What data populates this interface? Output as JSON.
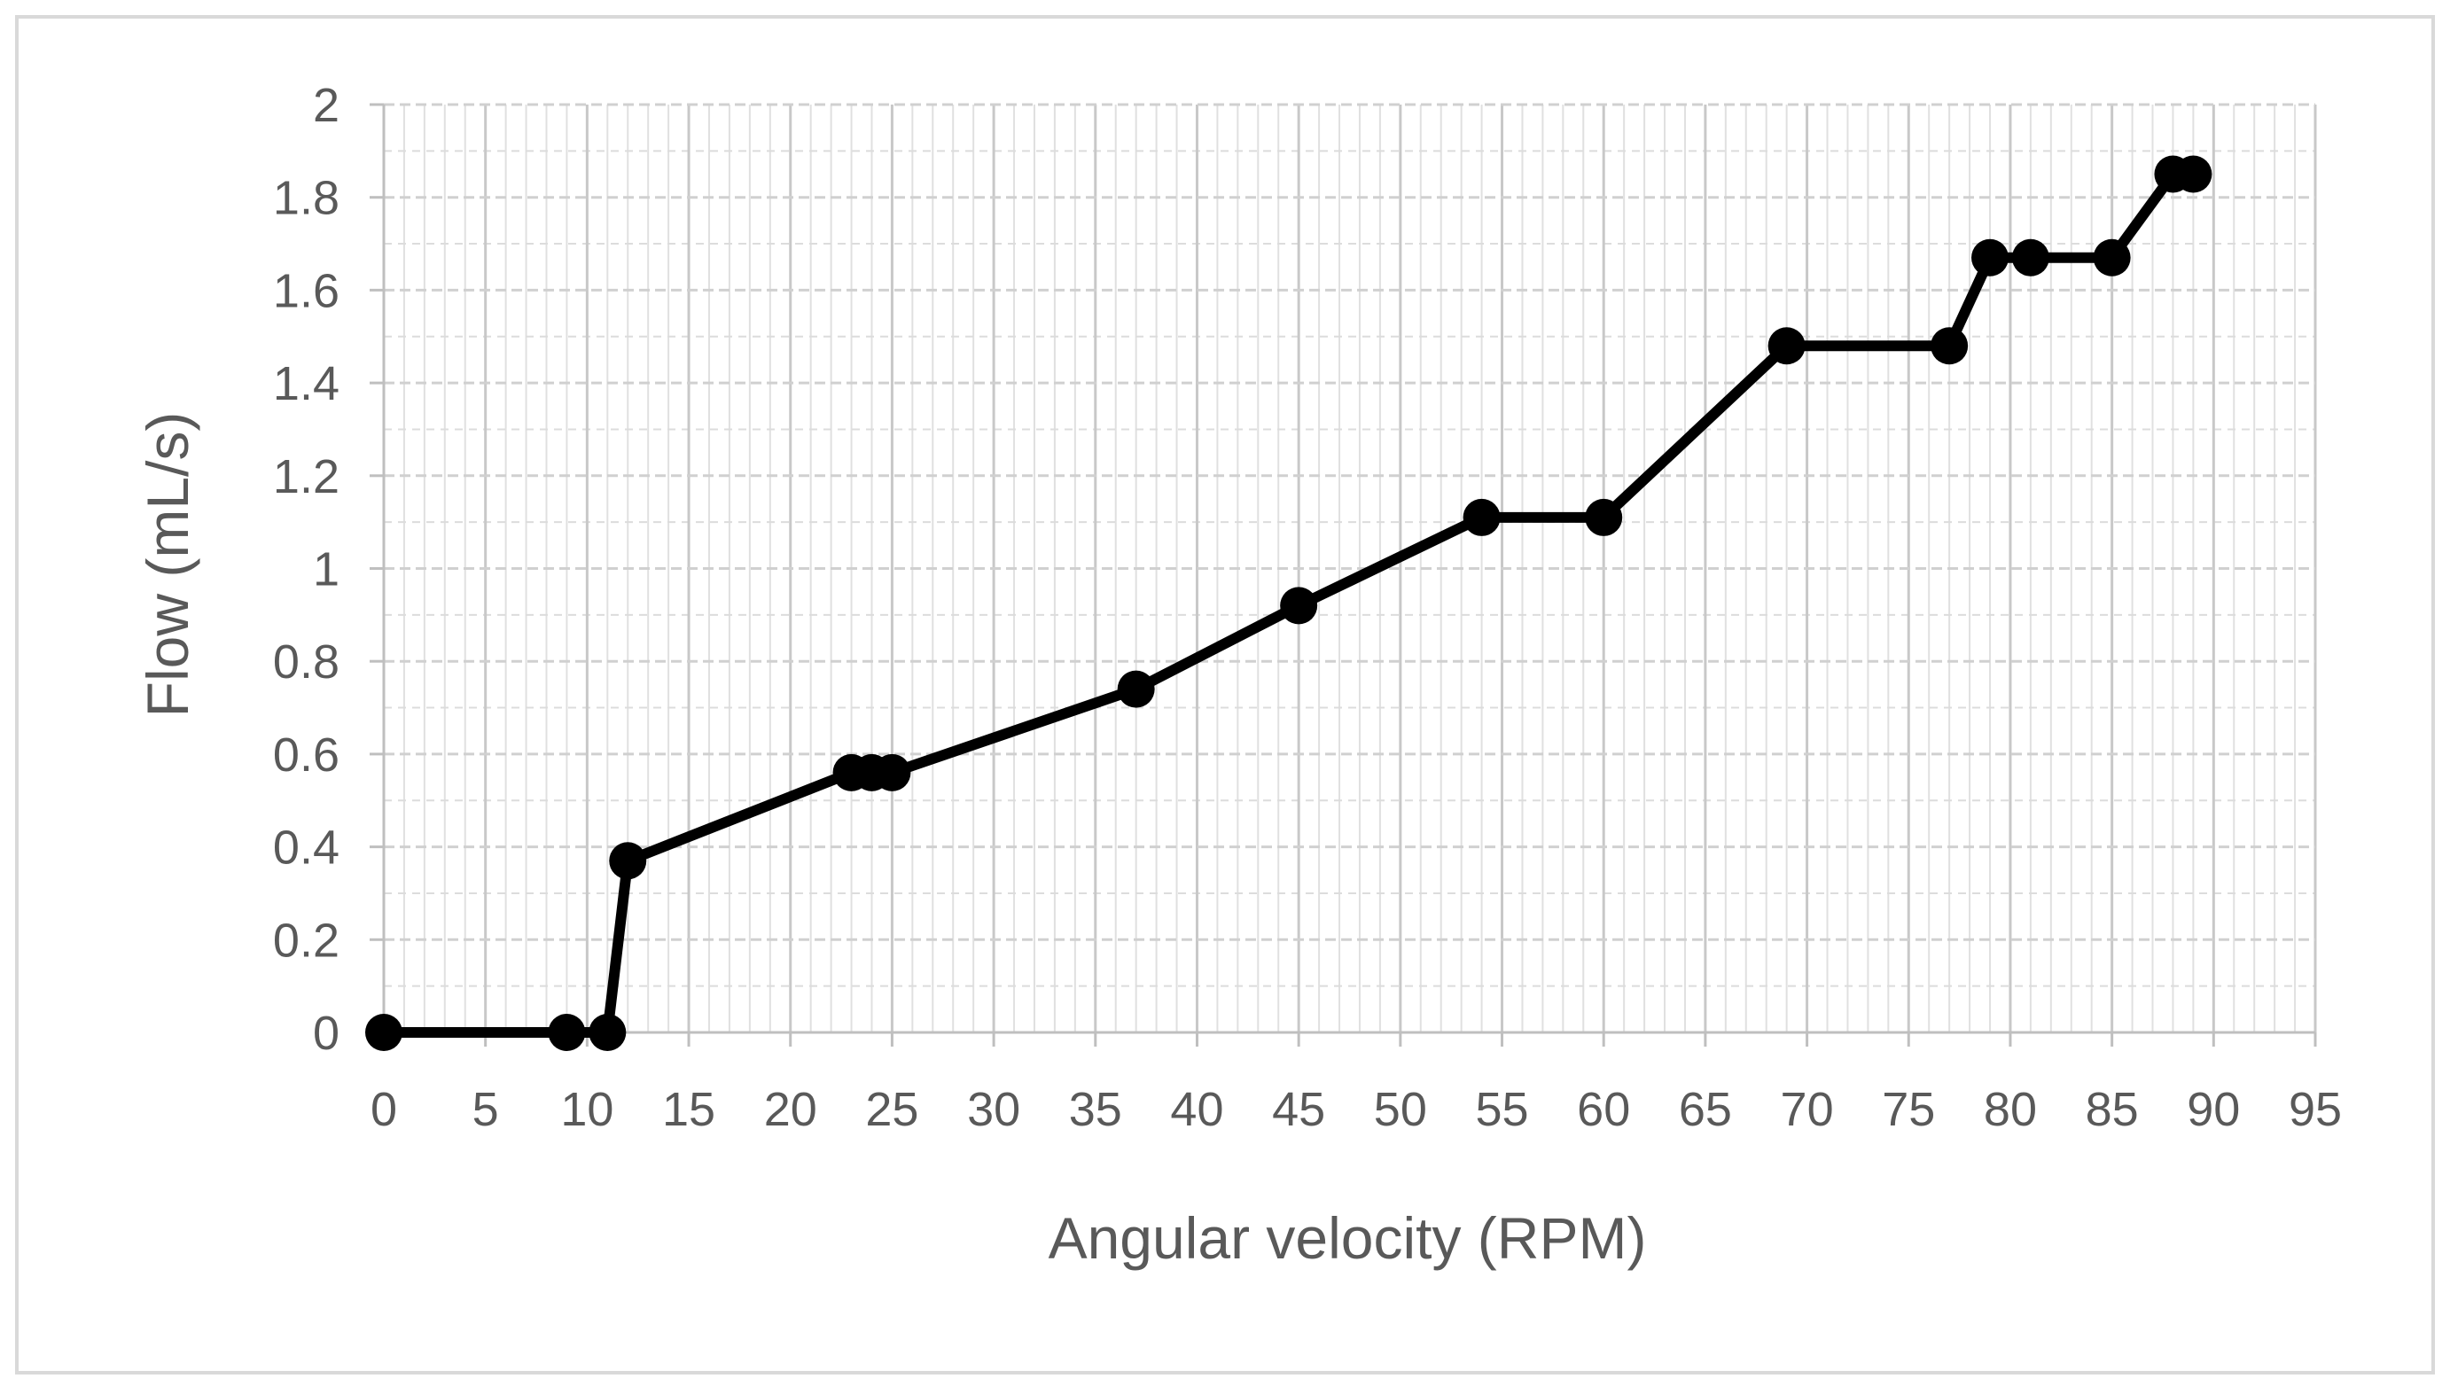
{
  "chart_data": {
    "type": "line",
    "title": "",
    "xlabel": "Angular velocity (RPM)",
    "ylabel": "Flow (mL/s)",
    "xlim": [
      0,
      95
    ],
    "ylim": [
      0,
      2
    ],
    "x_ticks": [
      "0",
      "5",
      "10",
      "15",
      "20",
      "25",
      "30",
      "35",
      "40",
      "45",
      "50",
      "55",
      "60",
      "65",
      "70",
      "75",
      "80",
      "85",
      "90",
      "95"
    ],
    "y_ticks": [
      "0",
      "0.2",
      "0.4",
      "0.6",
      "0.8",
      "1",
      "1.2",
      "1.4",
      "1.6",
      "1.8",
      "2"
    ],
    "grid": {
      "major": true,
      "minor_vertical_step": 1,
      "minor_horizontal_step": 0.1
    },
    "legend": "none",
    "series": [
      {
        "color": "#000000",
        "marker": "circle",
        "x": [
          0,
          9,
          11,
          12,
          23,
          24,
          25,
          37,
          45,
          54,
          60,
          69,
          77,
          79,
          81,
          85,
          88,
          89
        ],
        "y": [
          0,
          0,
          0,
          0.37,
          0.56,
          0.56,
          0.56,
          0.74,
          0.92,
          1.11,
          1.11,
          1.48,
          1.48,
          1.67,
          1.67,
          1.67,
          1.85,
          1.85
        ]
      }
    ]
  }
}
